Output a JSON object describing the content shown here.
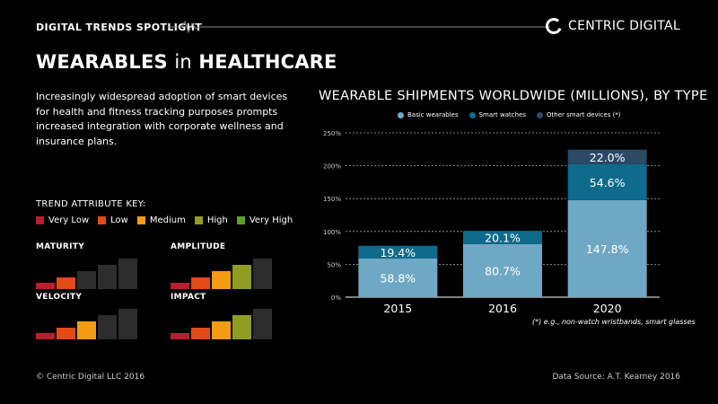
{
  "header": {
    "label": "DIGITAL TRENDS SPOTLIGHT",
    "brand": "CENTRIC DIGITAL"
  },
  "title": {
    "bold": "WEARABLES",
    "light": "in",
    "bold2": "HEALTHCARE"
  },
  "description": "Increasingly widespread adoption of smart devices for health and fitness tracking purposes prompts increased integration with corporate wellness and insurance plans.",
  "trend_key": {
    "title": "TREND ATTRIBUTE KEY:",
    "levels": [
      {
        "label": "Very Low",
        "color": "#b81e2d"
      },
      {
        "label": "Low",
        "color": "#e24a16"
      },
      {
        "label": "Medium",
        "color": "#f39c12"
      },
      {
        "label": "High",
        "color": "#8f9d24"
      },
      {
        "label": "Very High",
        "color": "#5f9e2e"
      }
    ],
    "inactive_color": "#2d2d2d"
  },
  "attributes": [
    {
      "name": "MATURITY",
      "level": 2
    },
    {
      "name": "AMPLITUDE",
      "level": 4
    },
    {
      "name": "VELOCITY",
      "level": 3
    },
    {
      "name": "IMPACT",
      "level": 4
    }
  ],
  "chart_data": {
    "type": "bar",
    "stacked": true,
    "title": "WEARABLE SHIPMENTS WORLDWIDE (MILLIONS), BY TYPE",
    "categories": [
      "2015",
      "2016",
      "2020"
    ],
    "series": [
      {
        "name": "Basic wearables",
        "values": [
          58.8,
          80.7,
          147.8
        ],
        "labels": [
          "58.8%",
          "80.7%",
          "147.8%"
        ],
        "color": "#6fa8c4"
      },
      {
        "name": "Smart watches",
        "values": [
          19.4,
          20.1,
          54.6
        ],
        "labels": [
          "19.4%",
          "20.1%",
          "54.6%"
        ],
        "color": "#0e6b8c"
      },
      {
        "name": "Other smart devices (*)",
        "values": [
          0,
          0,
          22.0
        ],
        "labels": [
          "",
          "",
          "22.0%"
        ],
        "color": "#2c4a66"
      }
    ],
    "y_ticks": [
      "0%",
      "50%",
      "100%",
      "150%",
      "200%",
      "250%"
    ],
    "ylim": [
      0,
      250
    ],
    "grid": true,
    "legend_position": "top"
  },
  "note": "(*) e.g., non-watch wristbands, smart glasses",
  "footer": {
    "left": "© Centric Digital LLC 2016",
    "right": "Data Source: A.T. Kearney 2016"
  }
}
